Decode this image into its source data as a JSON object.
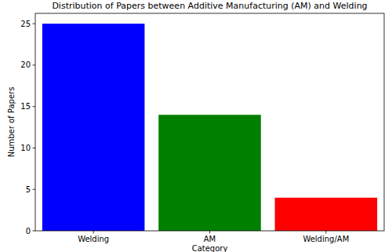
{
  "chart_data": {
    "type": "bar",
    "title": "Distribution of Papers between Additive Manufacturing (AM) and Welding",
    "x_label": "Category",
    "y_label": "Number of Papers",
    "categories": [
      "Welding",
      "AM",
      "Welding/AM"
    ],
    "values": [
      25,
      14,
      4
    ],
    "colors": [
      "#0000ff",
      "#008000",
      "#ff0000"
    ],
    "ylim": [
      0,
      26.25
    ],
    "yticks": [
      0,
      5,
      10,
      15,
      20,
      25
    ],
    "grid": false
  }
}
